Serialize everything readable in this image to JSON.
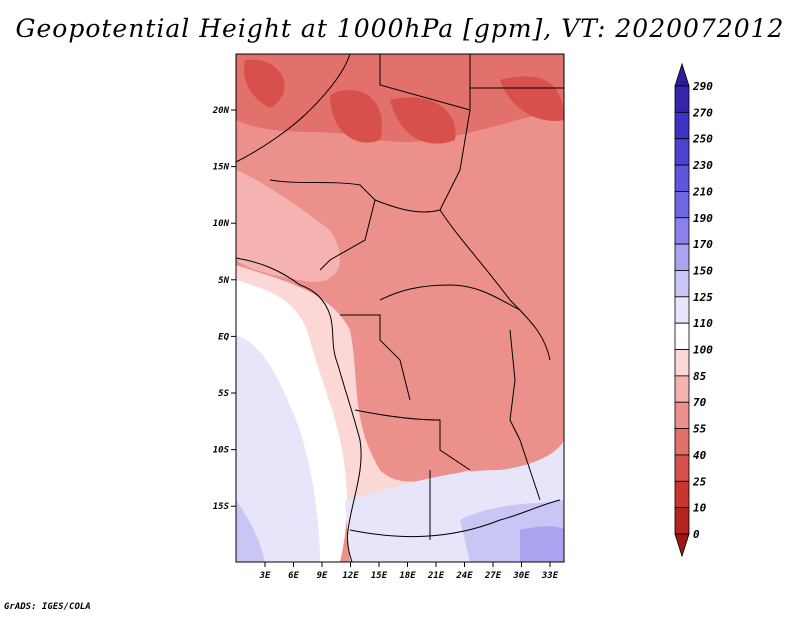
{
  "title": "Geopotential Height at 1000hPa [gpm], VT: 2020072012",
  "footer": "GrADS: IGES/COLA",
  "map": {
    "lat_labels": [
      "20N",
      "15N",
      "10N",
      "5N",
      "EQ",
      "5S",
      "10S",
      "15S"
    ],
    "lon_labels": [
      "3E",
      "6E",
      "9E",
      "12E",
      "15E",
      "18E",
      "21E",
      "24E",
      "27E",
      "30E",
      "33E"
    ]
  },
  "colorbar": {
    "labels": [
      "290",
      "270",
      "250",
      "230",
      "210",
      "190",
      "170",
      "150",
      "125",
      "110",
      "100",
      "85",
      "70",
      "55",
      "40",
      "25",
      "10",
      "0"
    ],
    "colors": [
      "#2a1f9a",
      "#3326ad",
      "#3d32c1",
      "#4b43cf",
      "#5c56da",
      "#7068e3",
      "#8a82ea",
      "#a9a3f0",
      "#c9c6f5",
      "#e6e5fa",
      "#ffffff",
      "#fbd7d5",
      "#f4b3b0",
      "#ec908b",
      "#e2706b",
      "#d7504b",
      "#c93632",
      "#b52421",
      "#9c1714"
    ]
  }
}
